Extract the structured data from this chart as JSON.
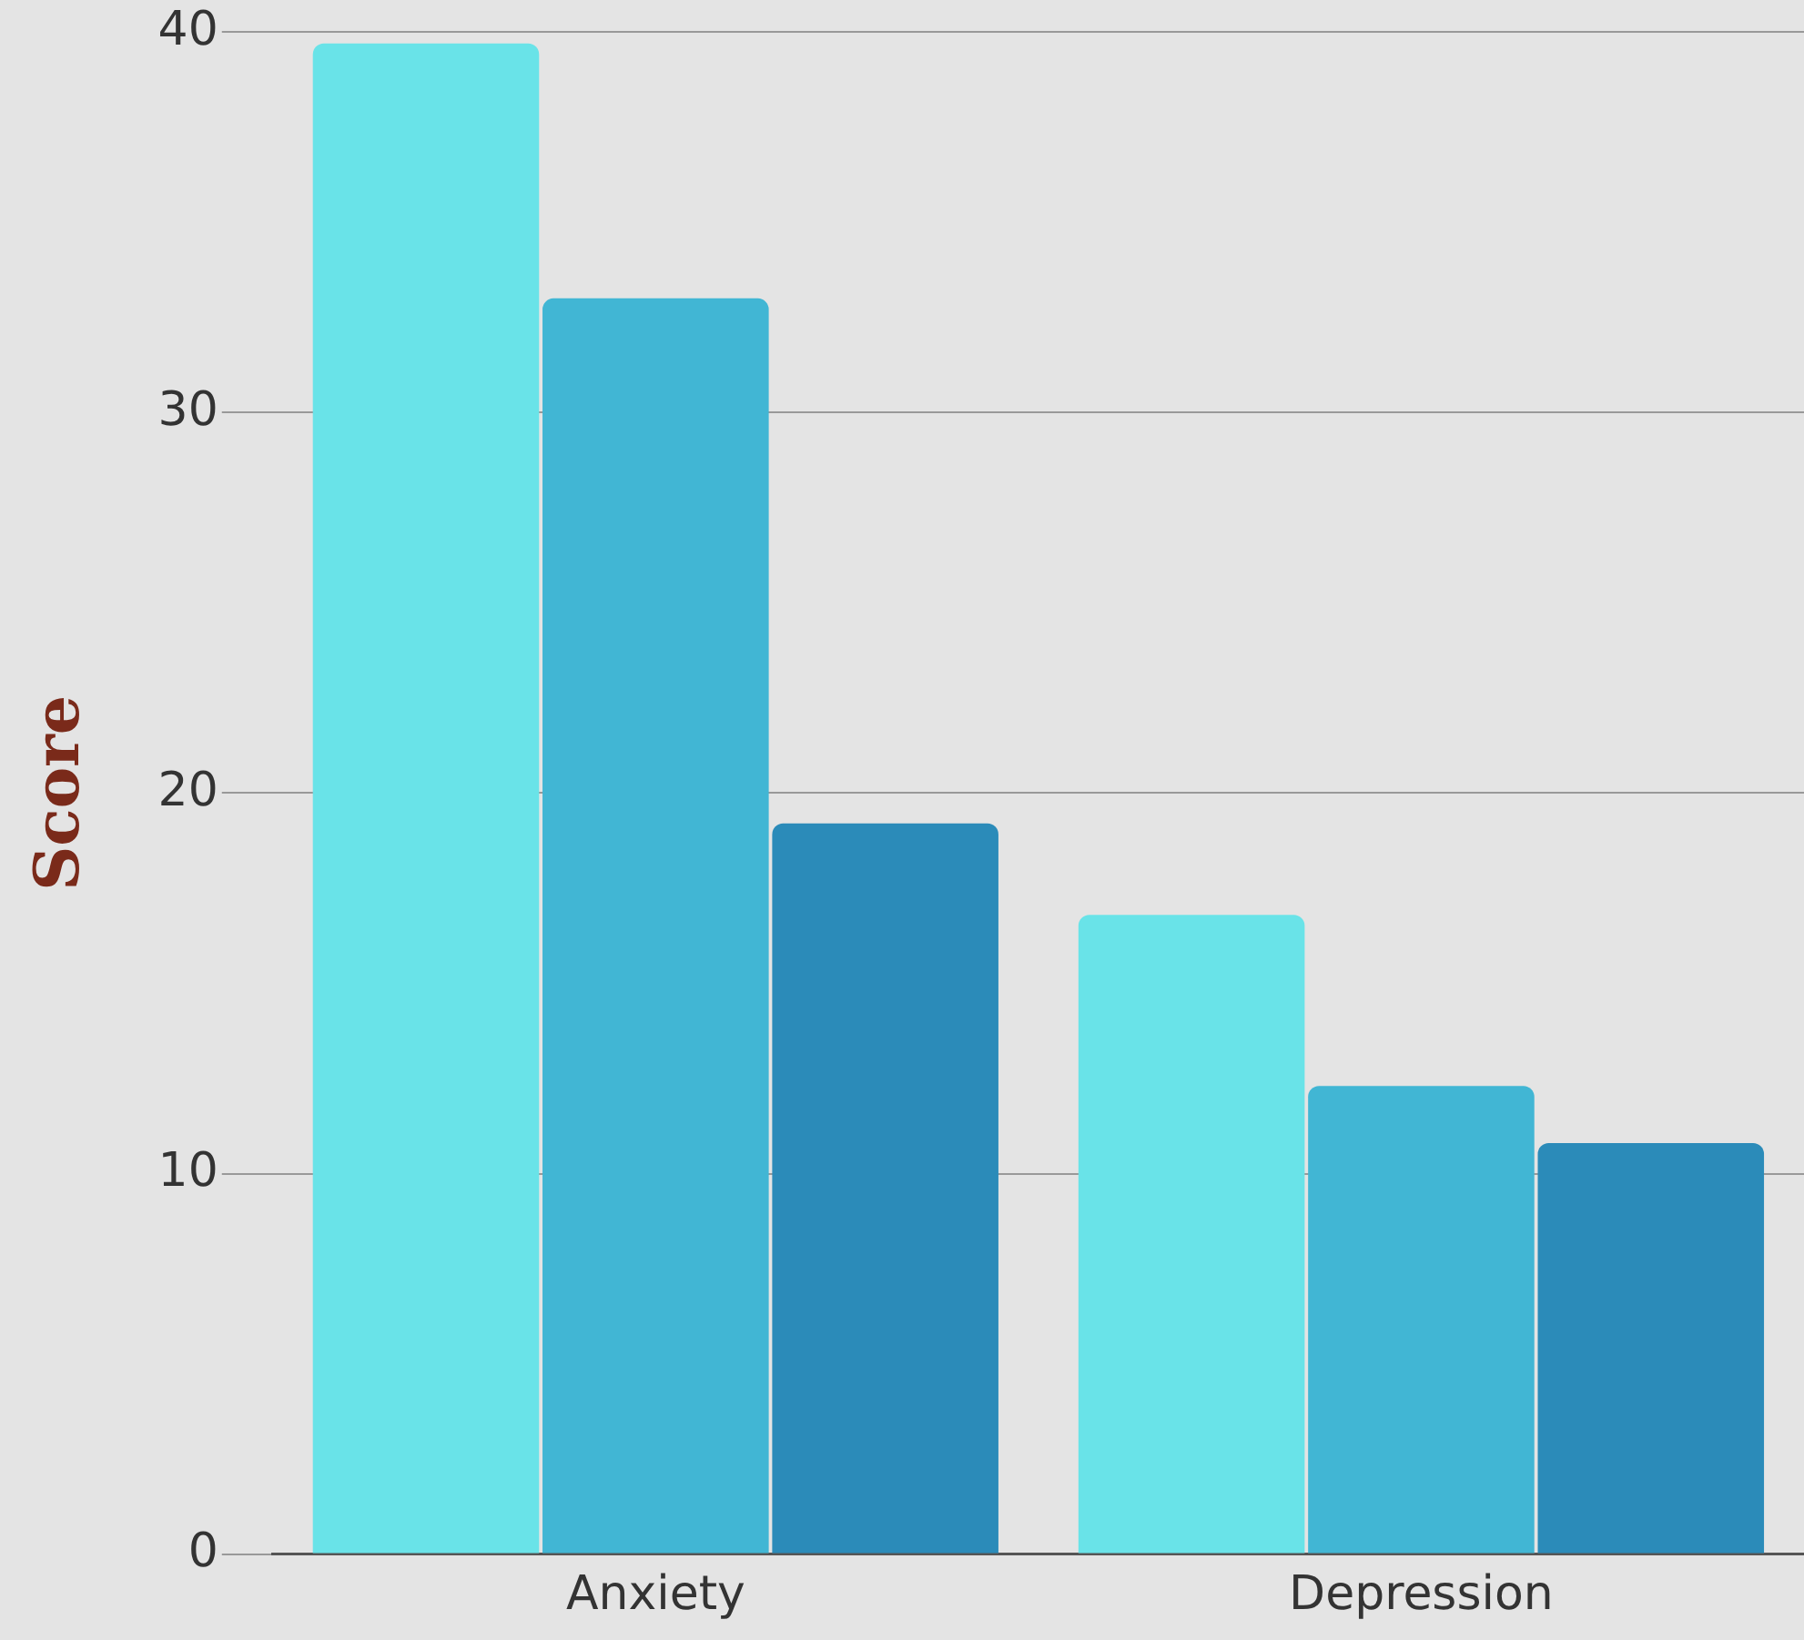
{
  "chart_data": {
    "type": "bar",
    "ylabel": "Score",
    "categories": [
      "Anxiety",
      "Depression"
    ],
    "series": [
      {
        "color": "#69e3e8",
        "values": [
          39.7,
          16.8
        ]
      },
      {
        "color": "#41b6d4",
        "values": [
          33.0,
          12.3
        ]
      },
      {
        "color": "#2b8bb9",
        "values": [
          19.2,
          10.8
        ]
      }
    ],
    "ylim": [
      0,
      40
    ],
    "yticks": [
      0,
      10,
      20,
      30,
      40
    ],
    "grid": "y",
    "legend": false
  }
}
